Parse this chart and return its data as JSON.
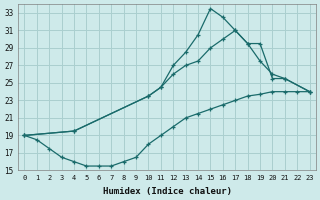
{
  "title": "",
  "xlabel": "Humidex (Indice chaleur)",
  "ylabel": "",
  "bg_color": "#ceeaea",
  "grid_color": "#aacfcf",
  "line_color": "#1a6b6b",
  "ylim": [
    15,
    34
  ],
  "xlim": [
    -0.5,
    23.5
  ],
  "yticks": [
    15,
    17,
    19,
    21,
    23,
    25,
    27,
    29,
    31,
    33
  ],
  "xticks": [
    0,
    1,
    2,
    3,
    4,
    5,
    6,
    7,
    8,
    9,
    10,
    11,
    12,
    13,
    14,
    15,
    16,
    17,
    18,
    19,
    20,
    21,
    22,
    23
  ],
  "series": [
    {
      "x": [
        0,
        1,
        2,
        3,
        4,
        5,
        6,
        7,
        8,
        9,
        10,
        11,
        12,
        13,
        14,
        15,
        16,
        17,
        18,
        19,
        20,
        21,
        22,
        23
      ],
      "y": [
        19.0,
        18.5,
        17.5,
        16.5,
        16.0,
        15.5,
        15.5,
        15.5,
        16.0,
        16.5,
        18.0,
        19.0,
        20.0,
        21.0,
        21.5,
        22.0,
        22.5,
        23.0,
        23.5,
        23.7,
        24.0,
        24.0,
        24.0,
        24.0
      ]
    },
    {
      "x": [
        0,
        4,
        10,
        11,
        12,
        13,
        14,
        15,
        16,
        17,
        18,
        19,
        20,
        21,
        23
      ],
      "y": [
        19.0,
        19.5,
        23.5,
        24.5,
        27.0,
        28.5,
        30.5,
        33.5,
        32.5,
        31.0,
        29.5,
        29.5,
        25.5,
        25.5,
        24.0
      ]
    },
    {
      "x": [
        0,
        4,
        10,
        11,
        12,
        13,
        14,
        15,
        16,
        17,
        18,
        19,
        20,
        21,
        23
      ],
      "y": [
        19.0,
        19.5,
        23.5,
        24.5,
        26.0,
        27.0,
        27.5,
        29.0,
        30.0,
        31.0,
        29.5,
        27.5,
        26.0,
        25.5,
        24.0
      ]
    }
  ]
}
